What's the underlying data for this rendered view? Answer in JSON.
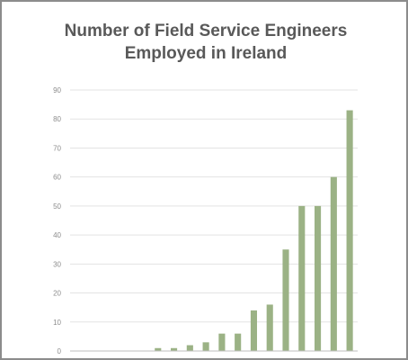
{
  "chart_data": {
    "type": "bar",
    "title_lines": [
      "Number of Field Service Engineers",
      "Employed in Ireland"
    ],
    "xlabel": "",
    "ylabel": "",
    "ylim": [
      0,
      90
    ],
    "yticks": [
      0,
      10,
      20,
      30,
      40,
      50,
      60,
      70,
      80,
      90
    ],
    "grid": true,
    "legend": "none",
    "bar_color": "#9bb285",
    "values": [
      0,
      0,
      0,
      0,
      0,
      1,
      1,
      2,
      3,
      6,
      6,
      14,
      16,
      35,
      50,
      50,
      60,
      83
    ]
  }
}
